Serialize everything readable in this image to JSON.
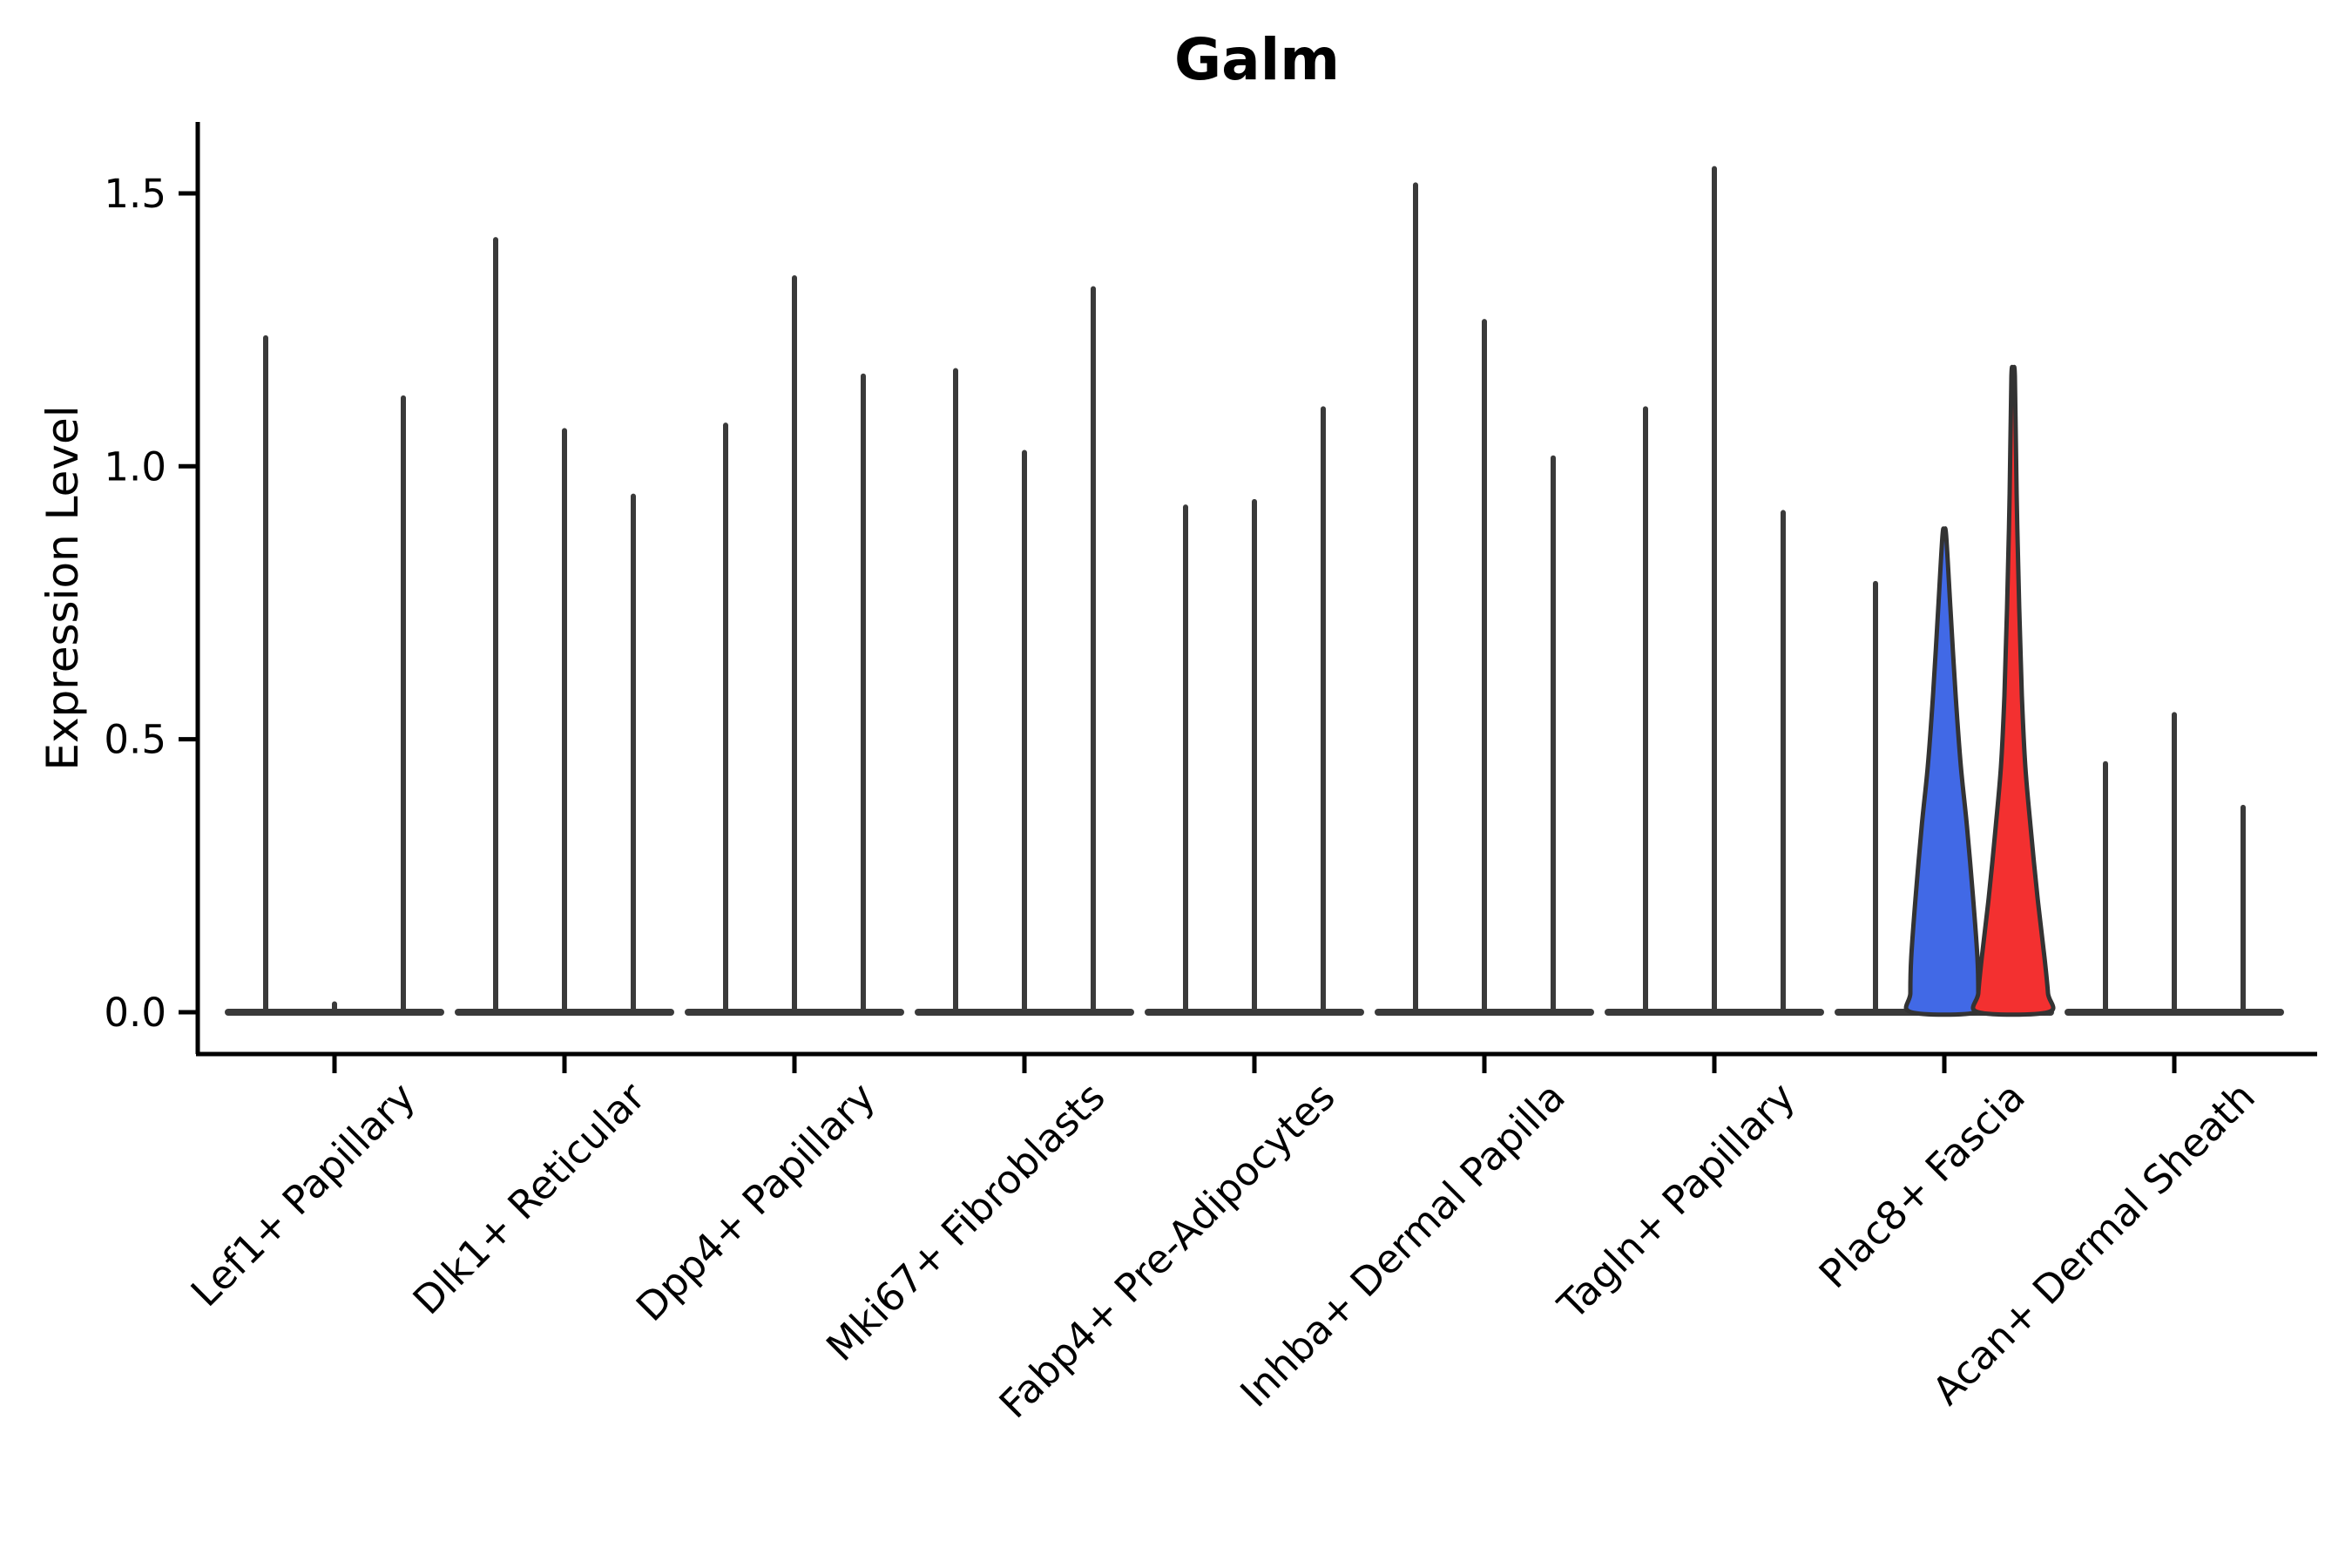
{
  "title": "Galm",
  "y_axis": {
    "label": "Expression Level"
  },
  "chart_data": {
    "type": "violin",
    "title": "Galm",
    "xlabel": "",
    "ylabel": "Expression Level",
    "ylim": [
      0,
      1.63
    ],
    "yticks": [
      0.0,
      0.5,
      1.0,
      1.5
    ],
    "ytick_labels": [
      "0.0",
      "0.5",
      "1.0",
      "1.5"
    ],
    "grid": false,
    "legend": "none",
    "categories": [
      "Lef1+ Papillary",
      "Dlk1+ Reticular",
      "Dpp4+ Papillary",
      "Mki67+ Fibroblasts",
      "Fabp4+ Pre-Adipocytes",
      "Inhba+ Dermal Papilla",
      "Tagln+ Papillary",
      "Plac8+ Fascia",
      "Acan+ Dermal Sheath"
    ],
    "violins_per_category": 3,
    "peak_expression": [
      [
        1.24,
        0.02,
        1.13
      ],
      [
        1.42,
        1.07,
        0.95
      ],
      [
        1.08,
        1.35,
        1.17
      ],
      [
        1.18,
        1.03,
        1.33
      ],
      [
        0.93,
        0.94,
        1.11
      ],
      [
        1.52,
        1.27,
        1.02
      ],
      [
        1.11,
        1.55,
        0.92
      ],
      [
        0.79,
        0.88,
        1.16
      ],
      [
        0.46,
        0.55,
        0.38
      ]
    ],
    "spike_color": "#3a3a3a",
    "axis_color": "#000000",
    "outline_color": "#333333",
    "highlighted_violins": [
      {
        "category": "Plac8+ Fascia",
        "category_index": 7,
        "violin_index": 1,
        "fill": "#4169e6",
        "peak": 0.88,
        "profile": [
          [
            0.875,
            2
          ],
          [
            0.74,
            7
          ],
          [
            0.58,
            13
          ],
          [
            0.45,
            19
          ],
          [
            0.34,
            26
          ],
          [
            0.21,
            33
          ],
          [
            0.1,
            38
          ],
          [
            0.035,
            39
          ],
          [
            0.0,
            38
          ]
        ]
      },
      {
        "category": "Plac8+ Fascia",
        "category_index": 7,
        "violin_index": 2,
        "fill": "#f33030",
        "peak": 1.16,
        "profile": [
          [
            1.165,
            2
          ],
          [
            0.95,
            4
          ],
          [
            0.74,
            7
          ],
          [
            0.58,
            10
          ],
          [
            0.45,
            14
          ],
          [
            0.34,
            20
          ],
          [
            0.21,
            28
          ],
          [
            0.1,
            36
          ],
          [
            0.035,
            40
          ],
          [
            0.0,
            40
          ]
        ]
      }
    ]
  }
}
